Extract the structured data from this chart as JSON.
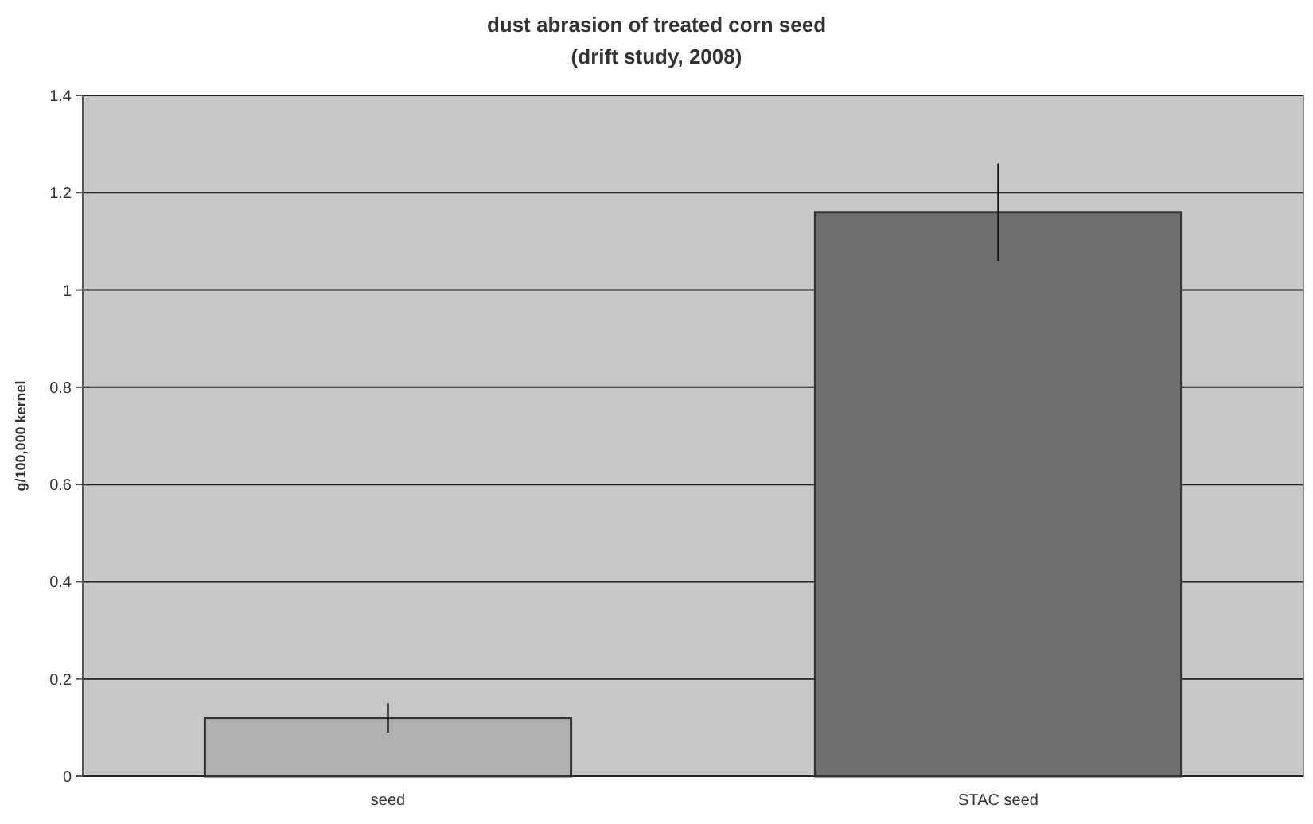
{
  "chart_data": {
    "type": "bar",
    "title": "dust abrasion of treated corn seed",
    "subtitle": "(drift study, 2008)",
    "ylabel": "g/100,000 kernel",
    "categories": [
      "seed",
      "STAC seed"
    ],
    "values": [
      0.12,
      1.16
    ],
    "colors": [
      "#b0b0b0",
      "#6e6e6e"
    ],
    "errors": [
      0.03,
      0.1
    ],
    "ylim": [
      0,
      1.4
    ],
    "yticks": [
      0,
      0.2,
      0.4,
      0.6,
      0.8,
      1,
      1.2,
      1.4
    ],
    "grid": "y"
  }
}
